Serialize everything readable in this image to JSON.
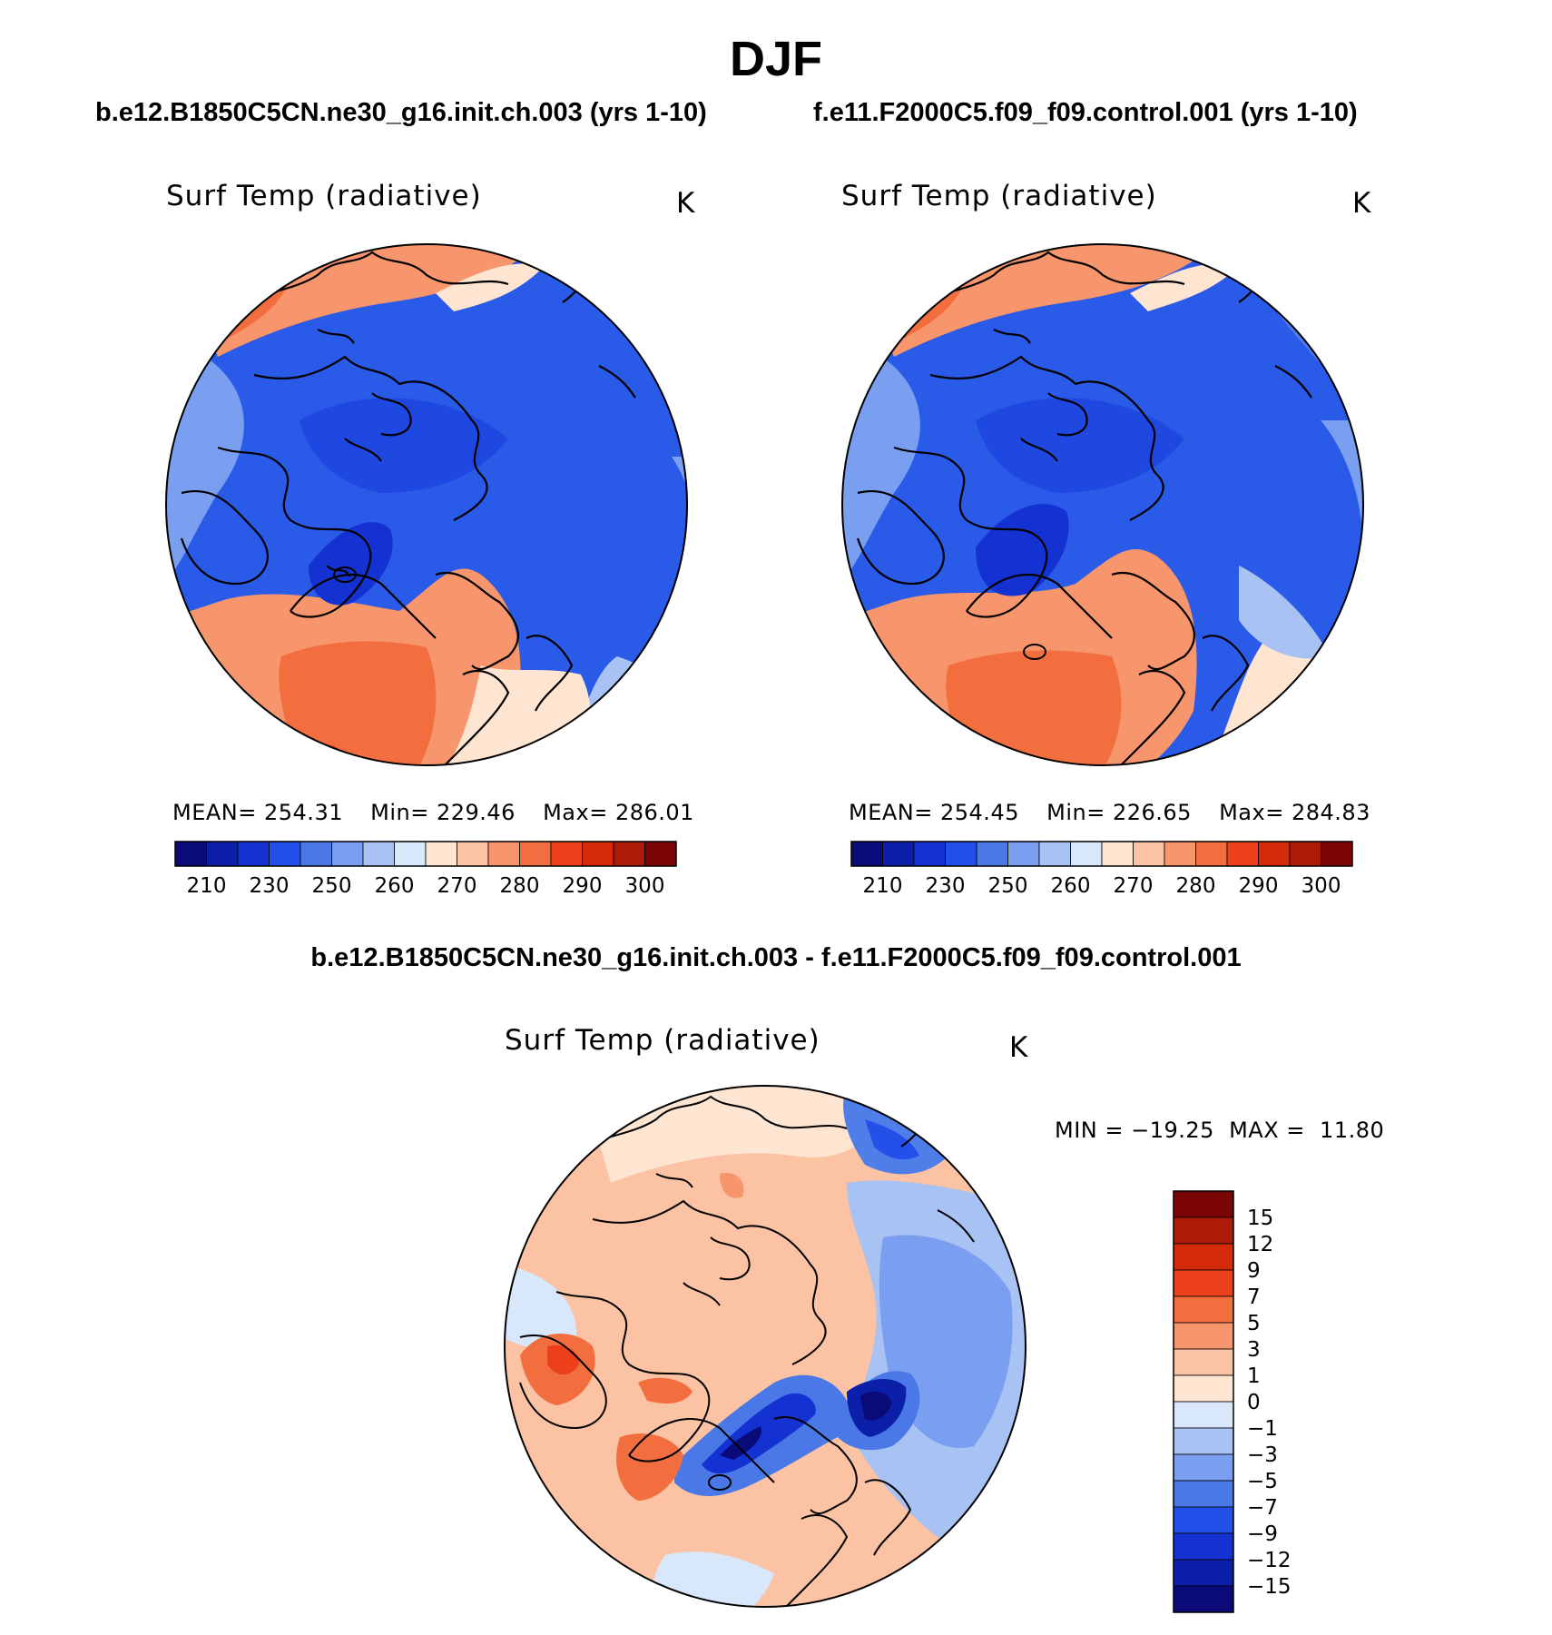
{
  "figure": {
    "season": "DJF",
    "case_a_title": "b.e12.B1850C5CN.ne30_g16.init.ch.003 (yrs 1-10)",
    "case_b_title": "f.e11.F2000C5.f09_f09.control.001 (yrs 1-10)",
    "diff_title": "b.e12.B1850C5CN.ne30_g16.init.ch.003 - f.e11.F2000C5.f09_f09.control.001"
  },
  "panels": [
    {
      "variable": "Surf Temp (radiative)",
      "units": "K",
      "mean_label": "MEAN=",
      "mean": "254.31",
      "min_label": "Min=",
      "min": "229.46",
      "max_label": "Max=",
      "max": "286.01"
    },
    {
      "variable": "Surf Temp (radiative)",
      "units": "K",
      "mean_label": "MEAN=",
      "mean": "254.45",
      "min_label": "Min=",
      "min": "226.65",
      "max_label": "Max=",
      "max": "284.83"
    },
    {
      "variable": "Surf Temp (radiative)",
      "units": "K",
      "min_label": "MIN =",
      "min": "−19.25",
      "max_label": "MAX =",
      "max": "11.80"
    }
  ],
  "colorbar_abs": {
    "ticks": [
      "210",
      "230",
      "250",
      "260",
      "270",
      "280",
      "290",
      "300"
    ],
    "colors": [
      "#0a0a78",
      "#0b1fa8",
      "#1432d2",
      "#2450ea",
      "#4a78e6",
      "#7a9ef0",
      "#a8c2f4",
      "#d8e8fa",
      "#fde5d2",
      "#fbc2a4",
      "#f7956c",
      "#f36e3f",
      "#ec3f1c",
      "#d42a0a",
      "#ac1b08",
      "#7a0504"
    ]
  },
  "colorbar_diff": {
    "ticks": [
      "15",
      "12",
      "9",
      "7",
      "5",
      "3",
      "1",
      "0",
      "−1",
      "−3",
      "−5",
      "−7",
      "−9",
      "−12",
      "−15"
    ],
    "colors": [
      "#7a0504",
      "#ac1b08",
      "#d42a0a",
      "#ec3f1c",
      "#f36e3f",
      "#f7956c",
      "#fbc2a4",
      "#fde5d2",
      "#d8e8fa",
      "#a8c2f4",
      "#7a9ef0",
      "#4a78e6",
      "#2450ea",
      "#1432d2",
      "#0b1fa8",
      "#0a0a78"
    ]
  },
  "colors": {
    "cold": "#2a5ae8",
    "cool": "#4f7ee8",
    "light_blue": "#a8c2f4",
    "warm": "#f7956c",
    "hot": "#f36e3f",
    "coast": "#000000"
  }
}
